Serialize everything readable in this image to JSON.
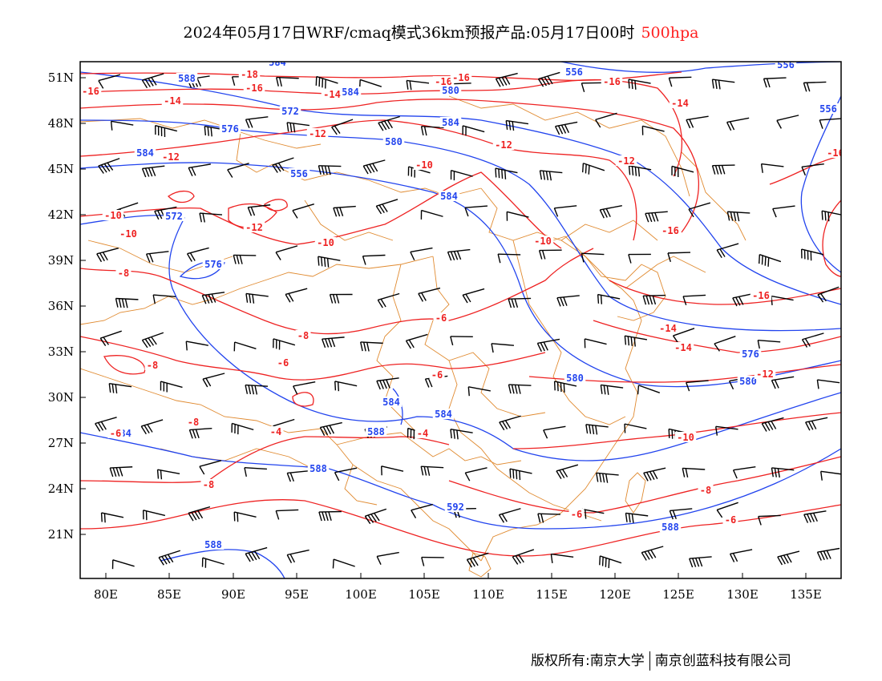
{
  "title": {
    "main": "2024年05月17日WRF/cmaq模式36km预报产品:05月17日00时",
    "level": "500hpa",
    "level_color": "#ff2020"
  },
  "axes": {
    "x_ticks": [
      "80E",
      "85E",
      "90E",
      "95E",
      "100E",
      "105E",
      "110E",
      "115E",
      "120E",
      "125E",
      "130E",
      "135E"
    ],
    "y_ticks": [
      "51N",
      "48N",
      "45N",
      "42N",
      "39N",
      "36N",
      "33N",
      "30N",
      "27N",
      "24N",
      "21N"
    ]
  },
  "colors": {
    "height_contour": "#2244ee",
    "temp_contour": "#ee2222",
    "boundary": "#e08a30",
    "wind_barb": "#000000"
  },
  "height_labels": [
    "584",
    "588",
    "556",
    "572",
    "576",
    "580",
    "584",
    "556",
    "584",
    "572",
    "576",
    "580",
    "584",
    "584",
    "584",
    "584",
    "588",
    "588",
    "592",
    "588",
    "584",
    "580",
    "576",
    "580",
    "588",
    "556",
    "556"
  ],
  "temp_labels": [
    "-16",
    "-18",
    "-16",
    "-14",
    "-16",
    "-14",
    "-16",
    "-16",
    "-14",
    "-12",
    "-12",
    "-10",
    "-12",
    "-10",
    "-12",
    "-10",
    "-10",
    "-12",
    "-10",
    "-14",
    "-16",
    "-16",
    "-16",
    "-14",
    "-12",
    "-10",
    "-8",
    "-8",
    "-6",
    "-6",
    "-8",
    "-6",
    "-8",
    "-6",
    "-4",
    "-4",
    "-8",
    "-6",
    "-6",
    "-8"
  ],
  "footer": {
    "left": "版权所有:南京大学",
    "right": "南京创蓝科技有限公司"
  }
}
